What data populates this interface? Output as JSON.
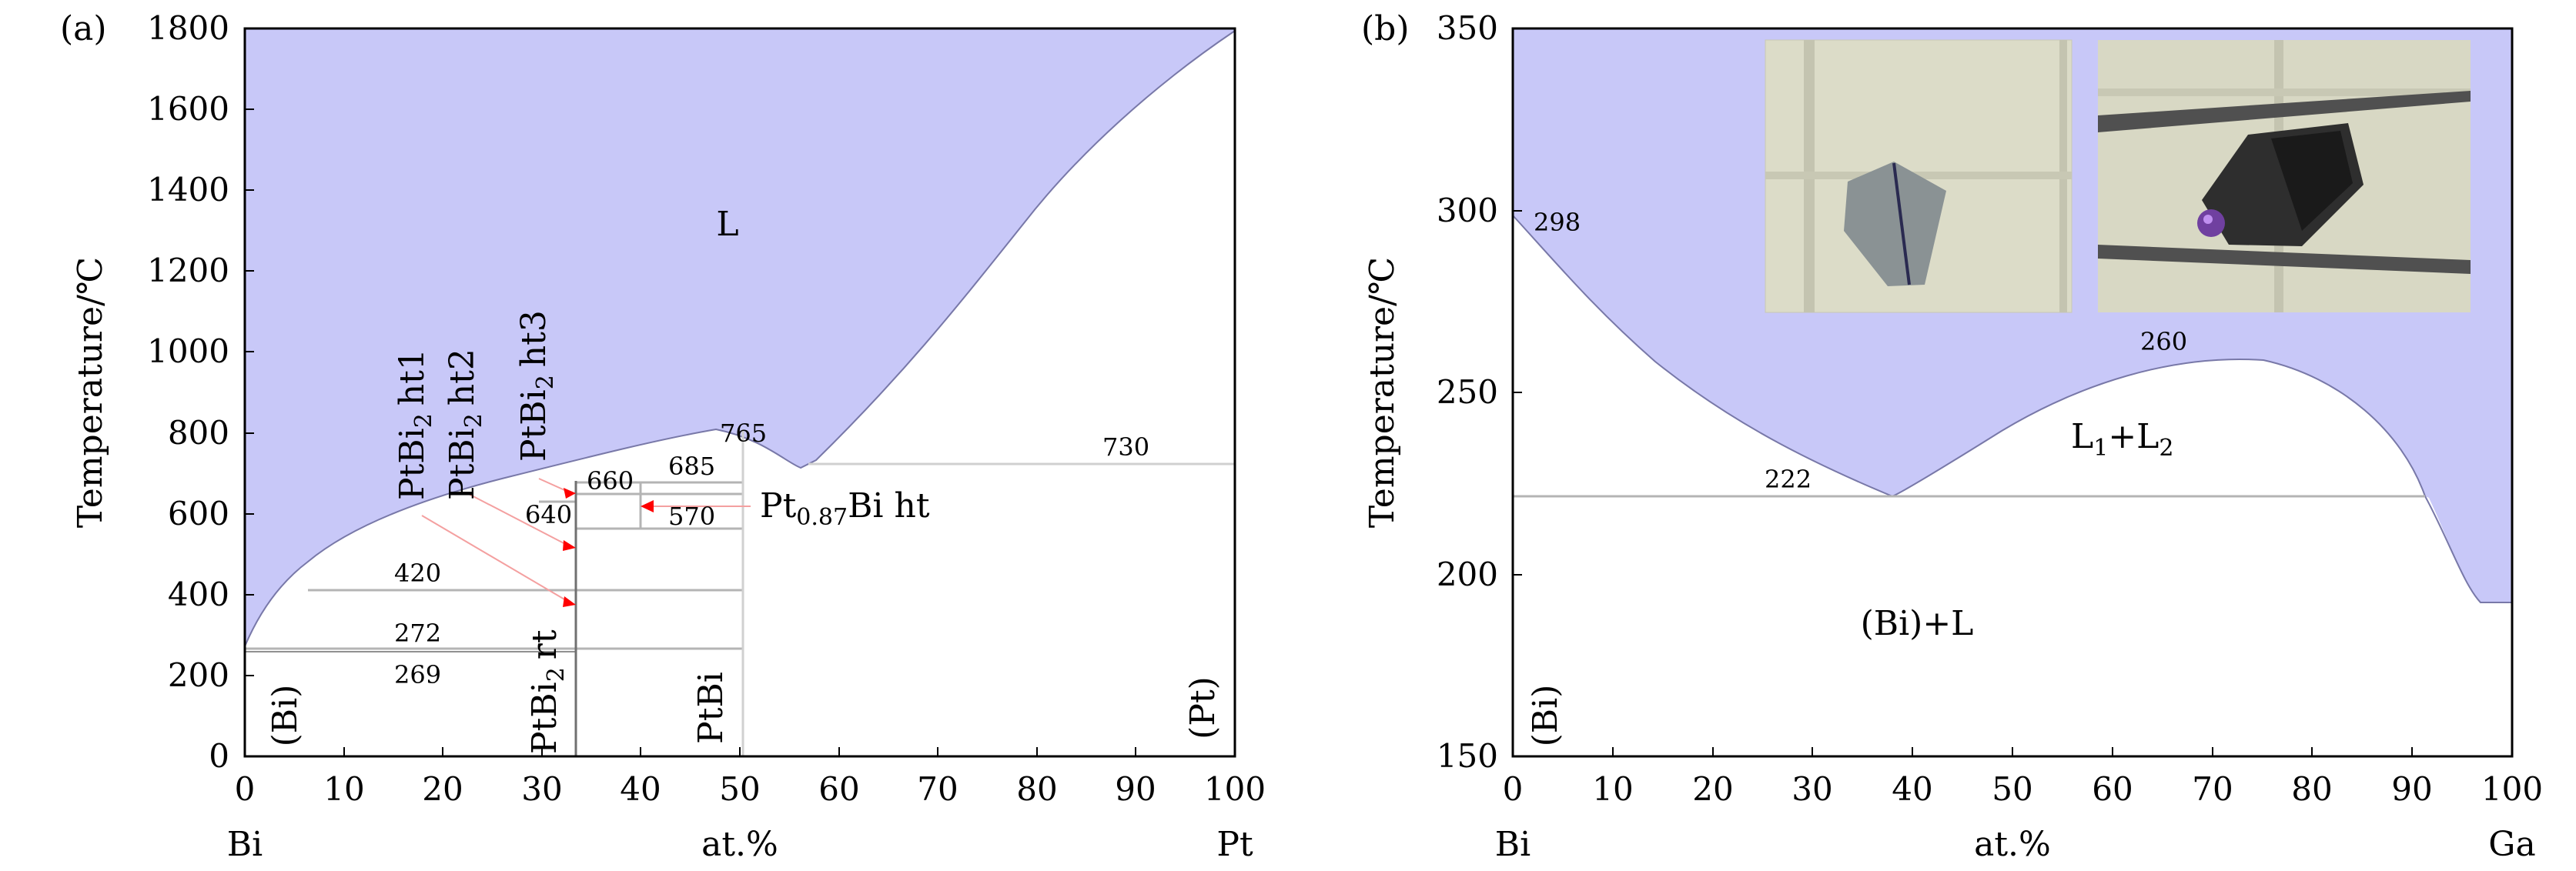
{
  "panel_a": {
    "label": "(a)",
    "ylabel": "Temperature/℃",
    "xlabel": "at.%",
    "left_element": "Bi",
    "right_element": "Pt",
    "x_ticks": [
      "0",
      "10",
      "20",
      "30",
      "40",
      "50",
      "60",
      "70",
      "80",
      "90",
      "100"
    ],
    "y_ticks": [
      "0",
      "200",
      "400",
      "600",
      "800",
      "1000",
      "1200",
      "1400",
      "1600",
      "1800"
    ],
    "region_liquid": "L",
    "phase_bi": "(Bi)",
    "phase_pt": "(Pt)",
    "phase_ptbi": "PtBi",
    "phase_ptbi2_rt": "PtBi",
    "phase_ptbi2_rt_suffix": "rt",
    "ht1": "PtBi",
    "ht1_suffix": "ht1",
    "ht2": "PtBi",
    "ht2_suffix": "ht2",
    "ht3": "PtBi",
    "ht3_suffix": "ht3",
    "pt087": "Pt",
    "pt087_sub": "0.87",
    "pt087_suffix": "Bi ht",
    "sub2": "2",
    "t765": "765",
    "t730": "730",
    "t685": "685",
    "t660": "660",
    "t640": "640",
    "t570": "570",
    "t420": "420",
    "t272": "272",
    "t269": "269"
  },
  "panel_b": {
    "label": "(b)",
    "ylabel": "Temperature/℃",
    "xlabel": "at.%",
    "left_element": "Bi",
    "right_element": "Ga",
    "x_ticks": [
      "0",
      "10",
      "20",
      "30",
      "40",
      "50",
      "60",
      "70",
      "80",
      "90",
      "100"
    ],
    "y_ticks": [
      "150",
      "200",
      "250",
      "300",
      "350"
    ],
    "phase_bi": "(Bi)",
    "region_bi_l": "(Bi)+L",
    "region_l1l2": "L",
    "region_l1l2_sub1": "1",
    "region_l1l2_mid": "+L",
    "region_l1l2_sub2": "2",
    "t298": "298",
    "t260": "260",
    "t222": "222"
  },
  "colors": {
    "liquid_fill": "#c8c8f8",
    "liquid_edge": "#7878a8",
    "solvus_line": "#b4b4b4",
    "arrow": "#ff0000",
    "arrow_line": "#f4a0a0",
    "axis": "#000000"
  },
  "chart_data": [
    {
      "type": "area",
      "x": [
        0,
        100
      ],
      "ylim": [
        0,
        1800
      ],
      "invariant_temperatures": [
        765,
        730,
        685,
        660,
        640,
        570,
        420,
        272,
        269
      ]
    },
    {
      "type": "area",
      "x": [
        0,
        100
      ],
      "ylim": [
        150,
        350
      ],
      "invariant_temperatures": [
        298,
        260,
        222
      ]
    }
  ]
}
